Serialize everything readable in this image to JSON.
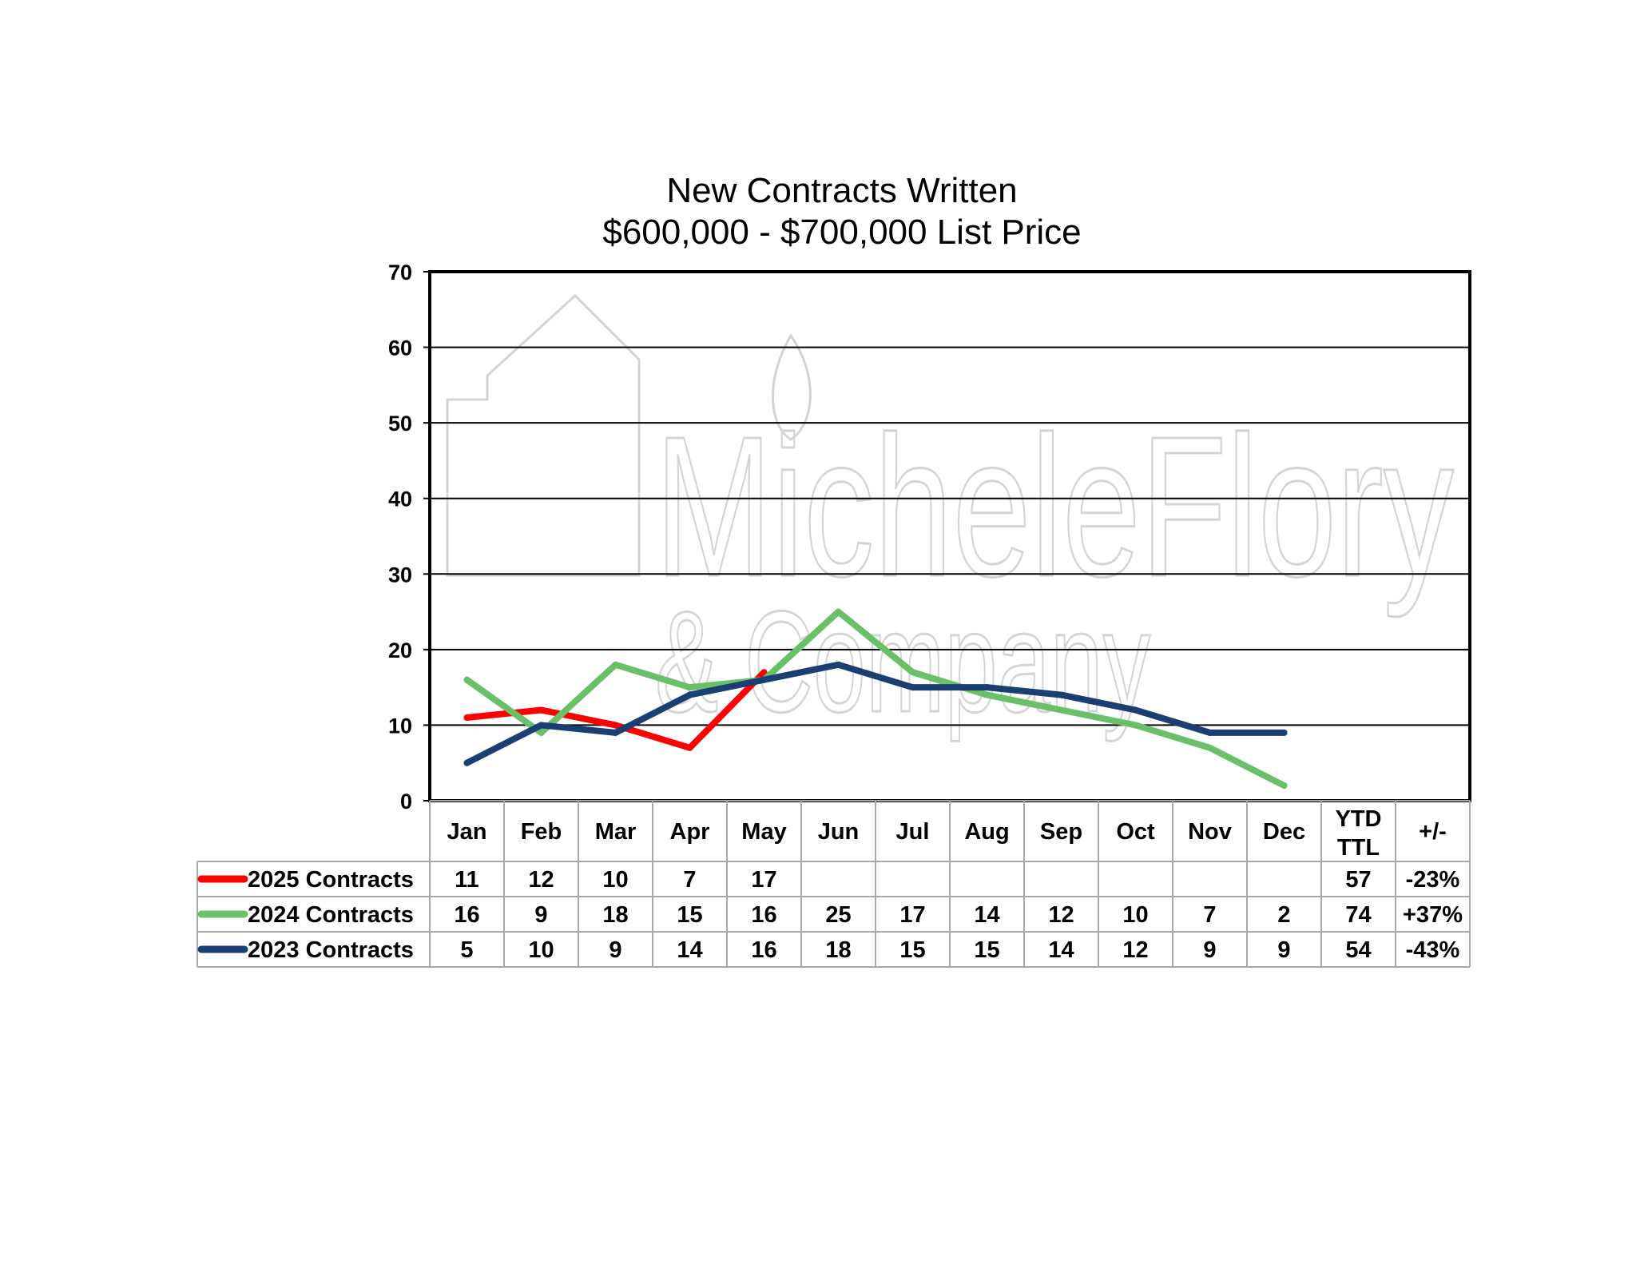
{
  "chart_data": {
    "type": "line",
    "title": "New Contracts Written",
    "subtitle": "$600,000 - $700,000 List Price",
    "categories": [
      "Jan",
      "Feb",
      "Mar",
      "Apr",
      "May",
      "Jun",
      "Jul",
      "Aug",
      "Sep",
      "Oct",
      "Nov",
      "Dec"
    ],
    "ylim": [
      0,
      70
    ],
    "yticks": [
      0,
      10,
      20,
      30,
      40,
      50,
      60,
      70
    ],
    "grid": true,
    "legend": "data-table-below",
    "table_headers": {
      "ytd_line1": "YTD",
      "ytd_line2": "TTL",
      "change": "+/-"
    },
    "series": [
      {
        "name": "2025 Contracts",
        "color": "#ff0000",
        "values": [
          11,
          12,
          10,
          7,
          17,
          null,
          null,
          null,
          null,
          null,
          null,
          null
        ],
        "ytd": "57",
        "change": "-23%"
      },
      {
        "name": "2024 Contracts",
        "color": "#6abf69",
        "values": [
          16,
          9,
          18,
          15,
          16,
          25,
          17,
          14,
          12,
          10,
          7,
          2
        ],
        "ytd": "74",
        "change": "+37%"
      },
      {
        "name": "2023 Contracts",
        "color": "#1a3f73",
        "values": [
          5,
          10,
          9,
          14,
          16,
          18,
          15,
          15,
          14,
          12,
          9,
          9
        ],
        "ytd": "54",
        "change": "-43%"
      }
    ],
    "watermark": {
      "line1": "MicheleFlory",
      "line2": "& Company"
    }
  }
}
